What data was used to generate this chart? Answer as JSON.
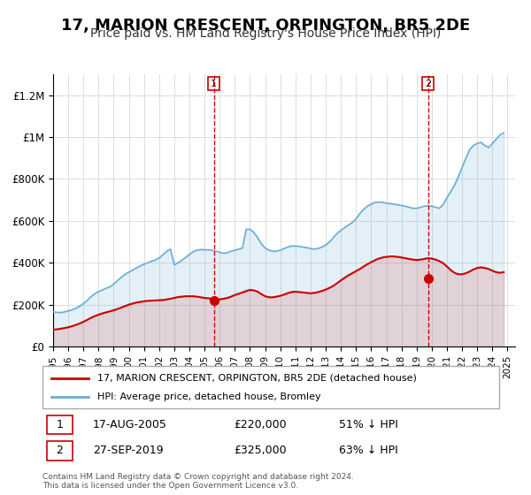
{
  "title": "17, MARION CRESCENT, ORPINGTON, BR5 2DE",
  "subtitle": "Price paid vs. HM Land Registry's House Price Index (HPI)",
  "title_fontsize": 13,
  "subtitle_fontsize": 10,
  "xlabel": "",
  "ylabel": "",
  "ylim": [
    0,
    1300000
  ],
  "xlim_start": 1995.0,
  "xlim_end": 2025.5,
  "ytick_values": [
    0,
    200000,
    400000,
    600000,
    800000,
    1000000,
    1200000
  ],
  "ytick_labels": [
    "£0",
    "£200K",
    "£400K",
    "£600K",
    "£800K",
    "£1M",
    "£1.2M"
  ],
  "xtick_years": [
    1995,
    1996,
    1997,
    1998,
    1999,
    2000,
    2001,
    2002,
    2003,
    2004,
    2005,
    2006,
    2007,
    2008,
    2009,
    2010,
    2011,
    2012,
    2013,
    2014,
    2015,
    2016,
    2017,
    2018,
    2019,
    2020,
    2021,
    2022,
    2023,
    2024,
    2025
  ],
  "hpi_color": "#6baed6",
  "price_color": "#cc0000",
  "marker_color": "#cc0000",
  "grid_color": "#dddddd",
  "background_color": "#ffffff",
  "legend_label_price": "17, MARION CRESCENT, ORPINGTON, BR5 2DE (detached house)",
  "legend_label_hpi": "HPI: Average price, detached house, Bromley",
  "sale1_label": "1",
  "sale1_date": "17-AUG-2005",
  "sale1_price": "£220,000",
  "sale1_pct": "51% ↓ HPI",
  "sale1_x": 2005.62,
  "sale1_y": 220000,
  "sale2_label": "2",
  "sale2_date": "27-SEP-2019",
  "sale2_price": "£325,000",
  "sale2_pct": "63% ↓ HPI",
  "sale2_x": 2019.75,
  "sale2_y": 325000,
  "vline1_x": 2005.62,
  "vline2_x": 2019.75,
  "footer_text": "Contains HM Land Registry data © Crown copyright and database right 2024.\nThis data is licensed under the Open Government Licence v3.0.",
  "hpi_data_x": [
    1995.0,
    1995.25,
    1995.5,
    1995.75,
    1996.0,
    1996.25,
    1996.5,
    1996.75,
    1997.0,
    1997.25,
    1997.5,
    1997.75,
    1998.0,
    1998.25,
    1998.5,
    1998.75,
    1999.0,
    1999.25,
    1999.5,
    1999.75,
    2000.0,
    2000.25,
    2000.5,
    2000.75,
    2001.0,
    2001.25,
    2001.5,
    2001.75,
    2002.0,
    2002.25,
    2002.5,
    2002.75,
    2003.0,
    2003.25,
    2003.5,
    2003.75,
    2004.0,
    2004.25,
    2004.5,
    2004.75,
    2005.0,
    2005.25,
    2005.5,
    2005.75,
    2006.0,
    2006.25,
    2006.5,
    2006.75,
    2007.0,
    2007.25,
    2007.5,
    2007.75,
    2008.0,
    2008.25,
    2008.5,
    2008.75,
    2009.0,
    2009.25,
    2009.5,
    2009.75,
    2010.0,
    2010.25,
    2010.5,
    2010.75,
    2011.0,
    2011.25,
    2011.5,
    2011.75,
    2012.0,
    2012.25,
    2012.5,
    2012.75,
    2013.0,
    2013.25,
    2013.5,
    2013.75,
    2014.0,
    2014.25,
    2014.5,
    2014.75,
    2015.0,
    2015.25,
    2015.5,
    2015.75,
    2016.0,
    2016.25,
    2016.5,
    2016.75,
    2017.0,
    2017.25,
    2017.5,
    2017.75,
    2018.0,
    2018.25,
    2018.5,
    2018.75,
    2019.0,
    2019.25,
    2019.5,
    2019.75,
    2020.0,
    2020.25,
    2020.5,
    2020.75,
    2021.0,
    2021.25,
    2021.5,
    2021.75,
    2022.0,
    2022.25,
    2022.5,
    2022.75,
    2023.0,
    2023.25,
    2023.5,
    2023.75,
    2024.0,
    2024.25,
    2024.5,
    2024.75
  ],
  "hpi_data_y": [
    165000,
    163000,
    162000,
    165000,
    170000,
    175000,
    183000,
    192000,
    205000,
    220000,
    238000,
    252000,
    262000,
    270000,
    278000,
    285000,
    298000,
    315000,
    330000,
    345000,
    355000,
    365000,
    375000,
    385000,
    393000,
    400000,
    408000,
    413000,
    423000,
    438000,
    455000,
    465000,
    390000,
    400000,
    412000,
    425000,
    440000,
    453000,
    460000,
    463000,
    462000,
    462000,
    460000,
    455000,
    450000,
    445000,
    448000,
    455000,
    460000,
    465000,
    470000,
    560000,
    560000,
    545000,
    520000,
    490000,
    470000,
    460000,
    455000,
    455000,
    460000,
    468000,
    475000,
    480000,
    480000,
    478000,
    475000,
    472000,
    468000,
    465000,
    468000,
    475000,
    485000,
    500000,
    520000,
    540000,
    555000,
    568000,
    580000,
    592000,
    610000,
    635000,
    655000,
    670000,
    680000,
    688000,
    690000,
    688000,
    685000,
    682000,
    680000,
    677000,
    673000,
    670000,
    665000,
    660000,
    660000,
    665000,
    670000,
    672000,
    670000,
    665000,
    660000,
    678000,
    710000,
    740000,
    770000,
    810000,
    855000,
    900000,
    940000,
    960000,
    970000,
    975000,
    960000,
    950000,
    970000,
    990000,
    1010000,
    1020000
  ],
  "price_data_x": [
    1995.0,
    1995.25,
    1995.5,
    1995.75,
    1996.0,
    1996.25,
    1996.5,
    1996.75,
    1997.0,
    1997.25,
    1997.5,
    1997.75,
    1998.0,
    1998.25,
    1998.5,
    1998.75,
    1999.0,
    1999.25,
    1999.5,
    1999.75,
    2000.0,
    2000.25,
    2000.5,
    2000.75,
    2001.0,
    2001.25,
    2001.5,
    2001.75,
    2002.0,
    2002.25,
    2002.5,
    2002.75,
    2003.0,
    2003.25,
    2003.5,
    2003.75,
    2004.0,
    2004.25,
    2004.5,
    2004.75,
    2005.0,
    2005.25,
    2005.5,
    2005.75,
    2006.0,
    2006.25,
    2006.5,
    2006.75,
    2007.0,
    2007.25,
    2007.5,
    2007.75,
    2008.0,
    2008.25,
    2008.5,
    2008.75,
    2009.0,
    2009.25,
    2009.5,
    2009.75,
    2010.0,
    2010.25,
    2010.5,
    2010.75,
    2011.0,
    2011.25,
    2011.5,
    2011.75,
    2012.0,
    2012.25,
    2012.5,
    2012.75,
    2013.0,
    2013.25,
    2013.5,
    2013.75,
    2014.0,
    2014.25,
    2014.5,
    2014.75,
    2015.0,
    2015.25,
    2015.5,
    2015.75,
    2016.0,
    2016.25,
    2016.5,
    2016.75,
    2017.0,
    2017.25,
    2017.5,
    2017.75,
    2018.0,
    2018.25,
    2018.5,
    2018.75,
    2019.0,
    2019.25,
    2019.5,
    2019.75,
    2020.0,
    2020.25,
    2020.5,
    2020.75,
    2021.0,
    2021.25,
    2021.5,
    2021.75,
    2022.0,
    2022.25,
    2022.5,
    2022.75,
    2023.0,
    2023.25,
    2023.5,
    2023.75,
    2024.0,
    2024.25,
    2024.5,
    2024.75
  ],
  "price_data_y": [
    80000,
    82000,
    85000,
    88000,
    92000,
    97000,
    103000,
    110000,
    118000,
    127000,
    137000,
    145000,
    152000,
    158000,
    163000,
    168000,
    173000,
    179000,
    186000,
    193000,
    200000,
    205000,
    210000,
    213000,
    216000,
    218000,
    219000,
    220000,
    221000,
    222000,
    225000,
    228000,
    232000,
    236000,
    238000,
    240000,
    240000,
    240000,
    238000,
    235000,
    232000,
    230000,
    228000,
    226000,
    225000,
    228000,
    232000,
    238000,
    246000,
    252000,
    258000,
    265000,
    270000,
    268000,
    262000,
    250000,
    240000,
    235000,
    235000,
    238000,
    242000,
    248000,
    255000,
    260000,
    262000,
    260000,
    258000,
    256000,
    254000,
    256000,
    260000,
    265000,
    272000,
    280000,
    290000,
    302000,
    316000,
    328000,
    340000,
    350000,
    360000,
    370000,
    382000,
    393000,
    403000,
    412000,
    420000,
    425000,
    428000,
    430000,
    430000,
    428000,
    425000,
    422000,
    418000,
    415000,
    413000,
    415000,
    418000,
    422000,
    420000,
    415000,
    408000,
    398000,
    382000,
    365000,
    352000,
    345000,
    345000,
    350000,
    358000,
    368000,
    375000,
    378000,
    375000,
    370000,
    362000,
    355000,
    352000,
    355000
  ]
}
